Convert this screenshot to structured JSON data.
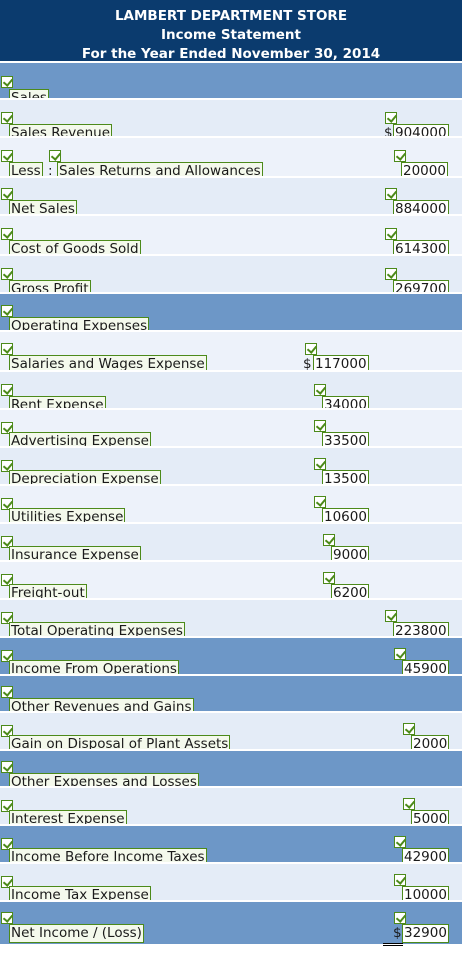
{
  "header": {
    "company": "LAMBERT DEPARTMENT STORE",
    "statement": "Income Statement",
    "period": "For the Year Ended November 30, 2014"
  },
  "rows": {
    "sales_heading": {
      "label": "Sales"
    },
    "sales_revenue": {
      "label": "Sales Revenue",
      "amount": "904000",
      "currency": "$"
    },
    "less": {
      "less_label": "Less",
      "label": "Sales Returns and Allowances",
      "amount": "20000"
    },
    "net_sales": {
      "label": "Net Sales",
      "amount": "884000"
    },
    "cogs": {
      "label": "Cost of Goods Sold",
      "amount": "614300"
    },
    "gross_profit": {
      "label": "Gross Profit",
      "amount": "269700"
    },
    "opex_heading": {
      "label": "Operating Expenses"
    },
    "salaries": {
      "label": "Salaries and Wages Expense",
      "amount": "117000",
      "currency": "$"
    },
    "rent": {
      "label": "Rent Expense",
      "amount": "34000"
    },
    "advertising": {
      "label": "Advertising Expense",
      "amount": "33500"
    },
    "depreciation": {
      "label": "Depreciation Expense",
      "amount": "13500"
    },
    "utilities": {
      "label": "Utilities Expense",
      "amount": "10600"
    },
    "insurance": {
      "label": "Insurance Expense",
      "amount": "9000"
    },
    "freight": {
      "label": "Freight-out",
      "amount": "6200"
    },
    "total_opex": {
      "label": "Total Operating Expenses",
      "amount": "223800"
    },
    "income_ops": {
      "label": "Income From Operations",
      "amount": "45900"
    },
    "other_rev_heading": {
      "label": "Other Revenues and Gains"
    },
    "gain": {
      "label": "Gain on Disposal of Plant Assets",
      "amount": "2000"
    },
    "other_exp_heading": {
      "label": "Other Expenses and Losses"
    },
    "interest": {
      "label": "Interest Expense",
      "amount": "5000"
    },
    "income_before_tax": {
      "label": "Income Before Income Taxes",
      "amount": "42900"
    },
    "tax": {
      "label": "Income Tax Expense",
      "amount": "10000"
    },
    "net_income": {
      "label": "Net Income / (Loss)",
      "amount": "32900",
      "currency": "$"
    }
  },
  "colors": {
    "header_bg": "#0b3b6e",
    "heading_row_bg": "#6d97c7",
    "light_row_bg": "#e4ecf7",
    "check_green": "#4c8a1a"
  },
  "icons": [
    "check-icon"
  ]
}
